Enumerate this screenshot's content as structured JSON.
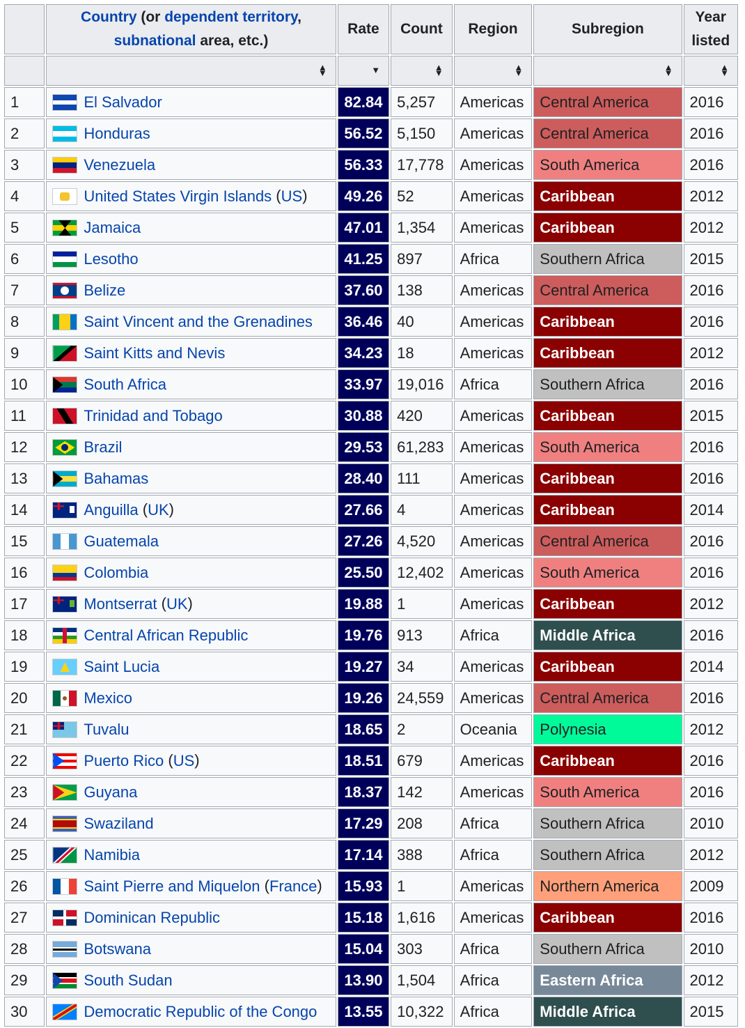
{
  "header": {
    "country_link": "Country",
    "country_mid1": " (or ",
    "country_link2": "dependent territory",
    "country_mid2": ",",
    "country_link3": "subnational",
    "country_end": " area, etc.)",
    "rate": "Rate",
    "count": "Count",
    "region": "Region",
    "subregion": "Subregion",
    "year_line1": "Year",
    "year_line2": "listed"
  },
  "sort_icons": {
    "both": "sort-up-down-icon",
    "desc": "sort-descending-icon"
  },
  "subregion_colors": {
    "Central America": "#cd5c5c",
    "South America": "#f08080",
    "Caribbean": "#8b0000",
    "Southern Africa": "#c0c0c0",
    "Middle Africa": "#2f4f4f",
    "Polynesia": "#00fa9a",
    "Northern America": "#ffa07a",
    "Eastern Africa": "#778899"
  },
  "rows": [
    {
      "rank": "1",
      "country": "El Salvador",
      "suffix": "",
      "rate": "82.84",
      "count": "5,257",
      "region": "Americas",
      "subregion": "Central America",
      "year": "2016",
      "flag": "el-salvador-flag-icon"
    },
    {
      "rank": "2",
      "country": "Honduras",
      "suffix": "",
      "rate": "56.52",
      "count": "5,150",
      "region": "Americas",
      "subregion": "Central America",
      "year": "2016",
      "flag": "honduras-flag-icon"
    },
    {
      "rank": "3",
      "country": "Venezuela",
      "suffix": "",
      "rate": "56.33",
      "count": "17,778",
      "region": "Americas",
      "subregion": "South America",
      "year": "2016",
      "flag": "venezuela-flag-icon"
    },
    {
      "rank": "4",
      "country": "United States Virgin Islands",
      "suffix": "(US)",
      "rate": "49.26",
      "count": "52",
      "region": "Americas",
      "subregion": "Caribbean",
      "year": "2012",
      "flag": "usvi-flag-icon"
    },
    {
      "rank": "5",
      "country": "Jamaica",
      "suffix": "",
      "rate": "47.01",
      "count": "1,354",
      "region": "Americas",
      "subregion": "Caribbean",
      "year": "2012",
      "flag": "jamaica-flag-icon"
    },
    {
      "rank": "6",
      "country": "Lesotho",
      "suffix": "",
      "rate": "41.25",
      "count": "897",
      "region": "Africa",
      "subregion": "Southern Africa",
      "year": "2015",
      "flag": "lesotho-flag-icon"
    },
    {
      "rank": "7",
      "country": "Belize",
      "suffix": "",
      "rate": "37.60",
      "count": "138",
      "region": "Americas",
      "subregion": "Central America",
      "year": "2016",
      "flag": "belize-flag-icon"
    },
    {
      "rank": "8",
      "country": "Saint Vincent and the Grenadines",
      "suffix": "",
      "rate": "36.46",
      "count": "40",
      "region": "Americas",
      "subregion": "Caribbean",
      "year": "2016",
      "flag": "st-vincent-flag-icon"
    },
    {
      "rank": "9",
      "country": "Saint Kitts and Nevis",
      "suffix": "",
      "rate": "34.23",
      "count": "18",
      "region": "Americas",
      "subregion": "Caribbean",
      "year": "2012",
      "flag": "st-kitts-flag-icon"
    },
    {
      "rank": "10",
      "country": "South Africa",
      "suffix": "",
      "rate": "33.97",
      "count": "19,016",
      "region": "Africa",
      "subregion": "Southern Africa",
      "year": "2016",
      "flag": "south-africa-flag-icon"
    },
    {
      "rank": "11",
      "country": "Trinidad and Tobago",
      "suffix": "",
      "rate": "30.88",
      "count": "420",
      "region": "Americas",
      "subregion": "Caribbean",
      "year": "2015",
      "flag": "trinidad-flag-icon"
    },
    {
      "rank": "12",
      "country": "Brazil",
      "suffix": "",
      "rate": "29.53",
      "count": "61,283",
      "region": "Americas",
      "subregion": "South America",
      "year": "2016",
      "flag": "brazil-flag-icon"
    },
    {
      "rank": "13",
      "country": "Bahamas",
      "suffix": "",
      "rate": "28.40",
      "count": "111",
      "region": "Americas",
      "subregion": "Caribbean",
      "year": "2016",
      "flag": "bahamas-flag-icon"
    },
    {
      "rank": "14",
      "country": "Anguilla",
      "suffix": "(UK)",
      "rate": "27.66",
      "count": "4",
      "region": "Americas",
      "subregion": "Caribbean",
      "year": "2014",
      "flag": "anguilla-flag-icon"
    },
    {
      "rank": "15",
      "country": "Guatemala",
      "suffix": "",
      "rate": "27.26",
      "count": "4,520",
      "region": "Americas",
      "subregion": "Central America",
      "year": "2016",
      "flag": "guatemala-flag-icon"
    },
    {
      "rank": "16",
      "country": "Colombia",
      "suffix": "",
      "rate": "25.50",
      "count": "12,402",
      "region": "Americas",
      "subregion": "South America",
      "year": "2016",
      "flag": "colombia-flag-icon"
    },
    {
      "rank": "17",
      "country": "Montserrat",
      "suffix": "(UK)",
      "rate": "19.88",
      "count": "1",
      "region": "Americas",
      "subregion": "Caribbean",
      "year": "2012",
      "flag": "montserrat-flag-icon"
    },
    {
      "rank": "18",
      "country": "Central African Republic",
      "suffix": "",
      "rate": "19.76",
      "count": "913",
      "region": "Africa",
      "subregion": "Middle Africa",
      "year": "2016",
      "flag": "car-flag-icon"
    },
    {
      "rank": "19",
      "country": "Saint Lucia",
      "suffix": "",
      "rate": "19.27",
      "count": "34",
      "region": "Americas",
      "subregion": "Caribbean",
      "year": "2014",
      "flag": "st-lucia-flag-icon"
    },
    {
      "rank": "20",
      "country": "Mexico",
      "suffix": "",
      "rate": "19.26",
      "count": "24,559",
      "region": "Americas",
      "subregion": "Central America",
      "year": "2016",
      "flag": "mexico-flag-icon"
    },
    {
      "rank": "21",
      "country": "Tuvalu",
      "suffix": "",
      "rate": "18.65",
      "count": "2",
      "region": "Oceania",
      "subregion": "Polynesia",
      "year": "2012",
      "flag": "tuvalu-flag-icon"
    },
    {
      "rank": "22",
      "country": "Puerto Rico",
      "suffix": "(US)",
      "rate": "18.51",
      "count": "679",
      "region": "Americas",
      "subregion": "Caribbean",
      "year": "2016",
      "flag": "puerto-rico-flag-icon"
    },
    {
      "rank": "23",
      "country": "Guyana",
      "suffix": "",
      "rate": "18.37",
      "count": "142",
      "region": "Americas",
      "subregion": "South America",
      "year": "2016",
      "flag": "guyana-flag-icon"
    },
    {
      "rank": "24",
      "country": "Swaziland",
      "suffix": "",
      "rate": "17.29",
      "count": "208",
      "region": "Africa",
      "subregion": "Southern Africa",
      "year": "2010",
      "flag": "swaziland-flag-icon"
    },
    {
      "rank": "25",
      "country": "Namibia",
      "suffix": "",
      "rate": "17.14",
      "count": "388",
      "region": "Africa",
      "subregion": "Southern Africa",
      "year": "2012",
      "flag": "namibia-flag-icon"
    },
    {
      "rank": "26",
      "country": "Saint Pierre and Miquelon",
      "suffix": "(France)",
      "rate": "15.93",
      "count": "1",
      "region": "Americas",
      "subregion": "Northern America",
      "year": "2009",
      "flag": "france-flag-icon"
    },
    {
      "rank": "27",
      "country": "Dominican Republic",
      "suffix": "",
      "rate": "15.18",
      "count": "1,616",
      "region": "Americas",
      "subregion": "Caribbean",
      "year": "2016",
      "flag": "dominican-republic-flag-icon"
    },
    {
      "rank": "28",
      "country": "Botswana",
      "suffix": "",
      "rate": "15.04",
      "count": "303",
      "region": "Africa",
      "subregion": "Southern Africa",
      "year": "2010",
      "flag": "botswana-flag-icon"
    },
    {
      "rank": "29",
      "country": "South Sudan",
      "suffix": "",
      "rate": "13.90",
      "count": "1,504",
      "region": "Africa",
      "subregion": "Eastern Africa",
      "year": "2012",
      "flag": "south-sudan-flag-icon"
    },
    {
      "rank": "30",
      "country": "Democratic Republic of the Congo",
      "suffix": "",
      "rate": "13.55",
      "count": "10,322",
      "region": "Africa",
      "subregion": "Middle Africa",
      "year": "2015",
      "flag": "drc-flag-icon"
    }
  ]
}
